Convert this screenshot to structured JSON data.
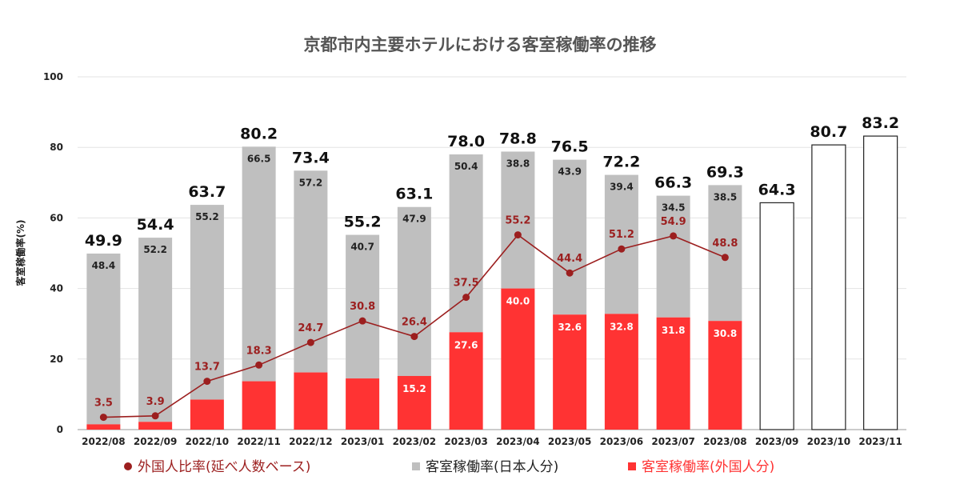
{
  "chart_data": {
    "type": "bar",
    "title": "京都市内主要ホテルにおける客室稼働率の推移",
    "ylabel": "客室稼働率(%)",
    "xlabel": "",
    "ylim": [
      0,
      100
    ],
    "yticks": [
      0,
      20,
      40,
      60,
      80,
      100
    ],
    "grid": true,
    "legend_position": "bottom",
    "categories": [
      "2022/08",
      "2022/09",
      "2022/10",
      "2022/11",
      "2022/12",
      "2023/01",
      "2023/02",
      "2023/03",
      "2023/04",
      "2023/05",
      "2023/06",
      "2023/07",
      "2023/08",
      "2023/09",
      "2023/10",
      "2023/11"
    ],
    "totals": [
      49.9,
      54.4,
      63.7,
      80.2,
      73.4,
      55.2,
      63.1,
      78.0,
      78.8,
      76.5,
      72.2,
      66.3,
      69.3,
      64.3,
      80.7,
      83.2
    ],
    "total_labels": [
      "49.9",
      "54.4",
      "63.7",
      "80.2",
      "73.4",
      "55.2",
      "63.1",
      "78.0",
      "78.8",
      "76.5",
      "72.2",
      "66.3",
      "69.3",
      "64.3",
      "80.7",
      "83.2"
    ],
    "series": [
      {
        "name": "客室稼働率(日本人分)",
        "kind": "stacked-bar",
        "color": "#bfbfbf",
        "values": [
          48.4,
          52.2,
          55.2,
          66.5,
          57.2,
          40.7,
          47.9,
          50.4,
          38.8,
          43.9,
          39.4,
          34.5,
          38.5,
          null,
          null,
          null
        ],
        "labels": [
          "48.4",
          "52.2",
          "55.2",
          "66.5",
          "57.2",
          "40.7",
          "47.9",
          "50.4",
          "38.8",
          "43.9",
          "39.4",
          "34.5",
          "38.5",
          "",
          "",
          ""
        ]
      },
      {
        "name": "客室稼働率(外国人分)",
        "kind": "stacked-bar",
        "color": "#ff3333",
        "values": [
          1.5,
          2.2,
          8.5,
          13.7,
          16.2,
          14.5,
          15.2,
          27.6,
          40.0,
          32.6,
          32.8,
          31.8,
          30.8,
          null,
          null,
          null
        ],
        "labels": [
          "",
          "",
          "",
          "",
          "",
          "",
          "15.2",
          "27.6",
          "40.0",
          "32.6",
          "32.8",
          "31.8",
          "30.8",
          "",
          "",
          ""
        ]
      },
      {
        "name": "外国人比率(延べ人数ベース)",
        "kind": "line",
        "color": "#9c1f1f",
        "values": [
          3.5,
          3.9,
          13.7,
          18.3,
          24.7,
          30.8,
          26.4,
          37.5,
          55.2,
          44.4,
          51.2,
          54.9,
          48.8,
          null,
          null,
          null
        ],
        "labels": [
          "3.5",
          "3.9",
          "13.7",
          "18.3",
          "24.7",
          "30.8",
          "26.4",
          "37.5",
          "55.2",
          "44.4",
          "51.2",
          "54.9",
          "48.8",
          "",
          "",
          ""
        ]
      }
    ],
    "forecast_bar_style": {
      "fill": "#ffffff",
      "stroke": "#222222"
    }
  },
  "legend": {
    "items": [
      {
        "label": "外国人比率(延べ人数ベース)",
        "marker": "circle",
        "color": "#9c1f1f"
      },
      {
        "label": "客室稼働率(日本人分)",
        "marker": "square",
        "color": "#bfbfbf"
      },
      {
        "label": "客室稼働率(外国人分)",
        "marker": "square",
        "color": "#ff3333"
      }
    ]
  }
}
